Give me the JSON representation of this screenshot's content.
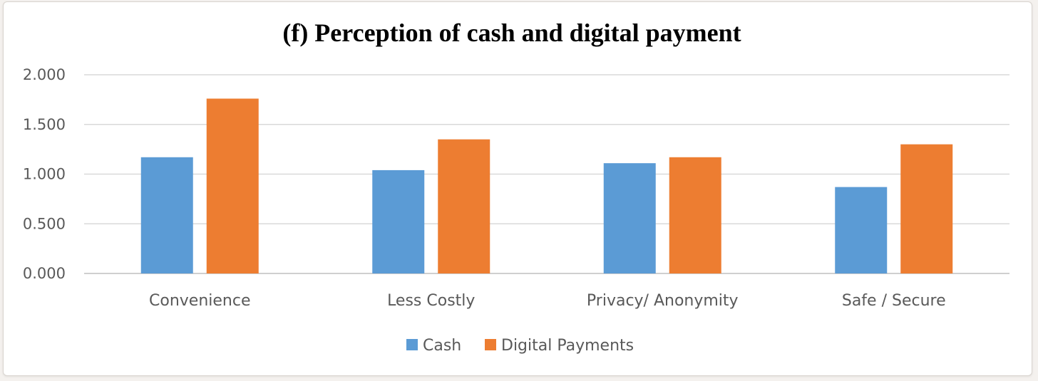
{
  "chart_data": {
    "type": "bar",
    "title": "(f) Perception of cash and digital payment",
    "categories": [
      "Convenience",
      "Less Costly",
      "Privacy/ Anonymity",
      "Safe / Secure"
    ],
    "series": [
      {
        "name": "Cash",
        "color": "#5b9bd5",
        "values": [
          1.17,
          1.04,
          1.11,
          0.87
        ]
      },
      {
        "name": "Digital Payments",
        "color": "#ed7d31",
        "values": [
          1.76,
          1.35,
          1.17,
          1.3
        ]
      }
    ],
    "ylim": [
      0,
      2.0
    ],
    "yticks": [
      "0.000",
      "0.500",
      "1.000",
      "1.500",
      "2.000"
    ],
    "ytick_values": [
      0,
      0.5,
      1.0,
      1.5,
      2.0
    ],
    "grid": true,
    "legend_position": "bottom"
  }
}
